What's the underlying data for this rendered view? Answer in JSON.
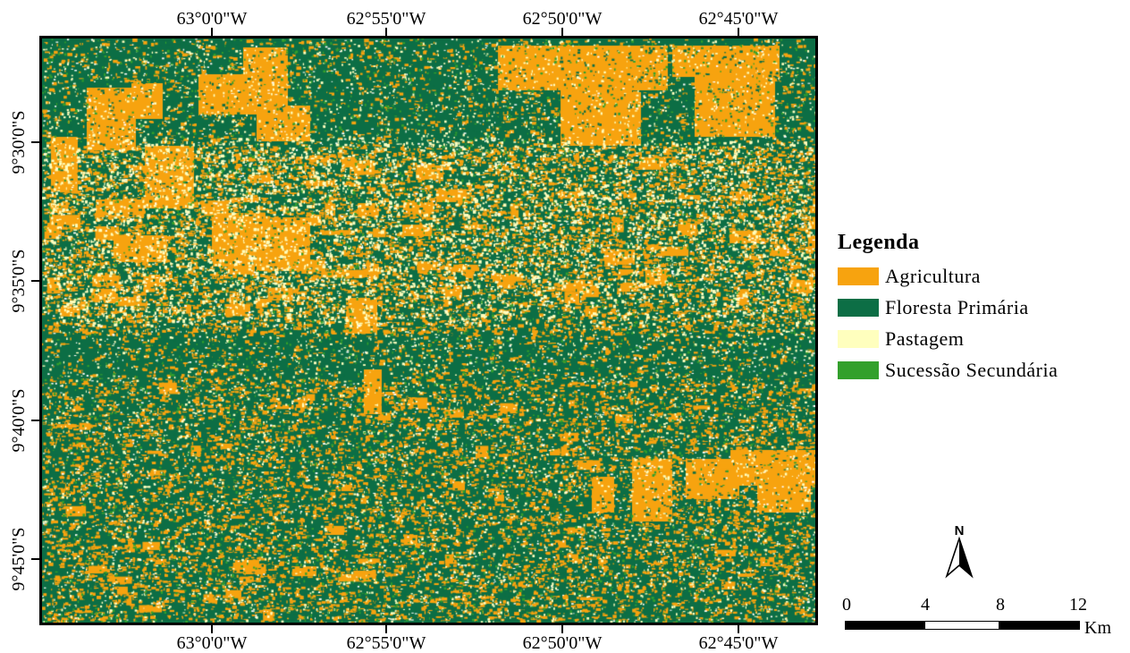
{
  "lon_labels": [
    "63°0'0\"W",
    "62°55'0\"W",
    "62°50'0\"W",
    "62°45'0\"W"
  ],
  "lat_labels": [
    "9°30'0\"S",
    "9°35'0\"S",
    "9°40'0\"S",
    "9°45'0\"S"
  ],
  "legend": {
    "title": "Legenda",
    "items": [
      {
        "label": "Agricultura",
        "color": "#f7a30f"
      },
      {
        "label": "Floresta Primária",
        "color": "#0c6e45"
      },
      {
        "label": "Pastagem",
        "color": "#ffffbe"
      },
      {
        "label": "Sucessão Secundária",
        "color": "#33a02c"
      }
    ]
  },
  "north_arrow": {
    "letter": "N"
  },
  "scale_bar": {
    "ticks": [
      "0",
      "4",
      "8",
      "12"
    ],
    "unit": "Km"
  }
}
